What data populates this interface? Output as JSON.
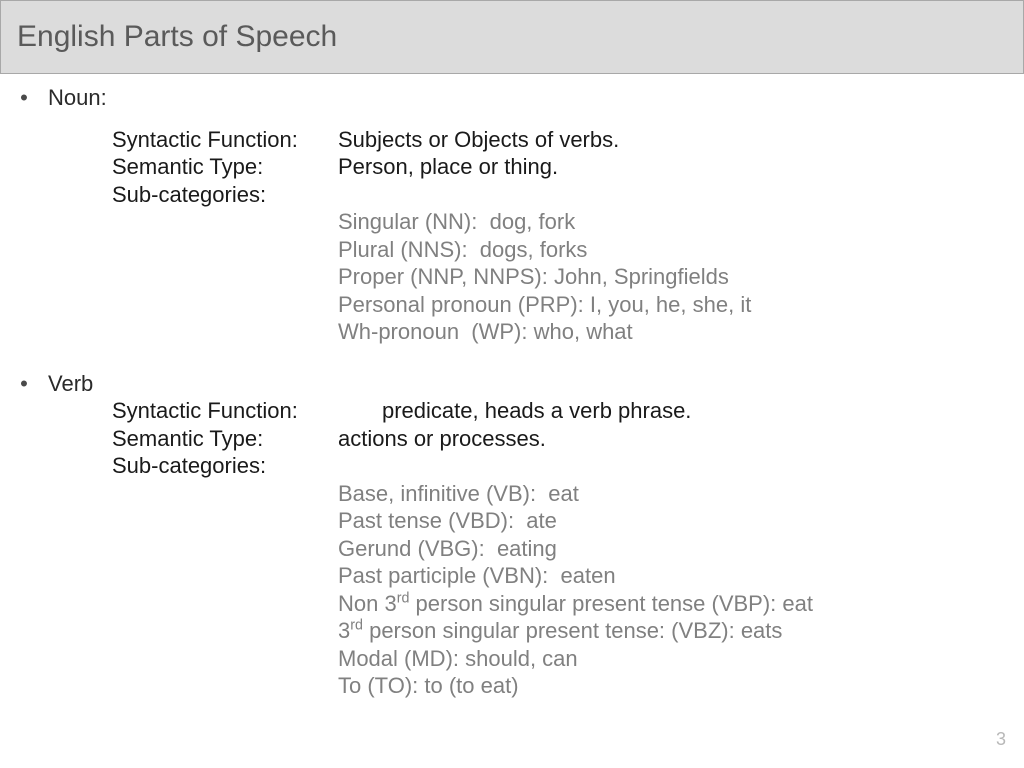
{
  "title": "English Parts of Speech",
  "page_number": "3",
  "colors": {
    "title_bar_bg": "#dcdcdc",
    "title_bar_border": "#a8a8a8",
    "title_text": "#5a5a5a",
    "body_text": "#1a1a1a",
    "subcategory_text": "#808080",
    "page_num": "#b8b8b8",
    "background": "#ffffff"
  },
  "typography": {
    "title_fontsize": 30,
    "body_fontsize": 22,
    "pagenum_fontsize": 18,
    "title_font": "Segoe UI Light",
    "body_font": "Arial"
  },
  "sections": {
    "noun": {
      "label": "Noun:",
      "fields": {
        "syntactic_function": {
          "key": "Syntactic Function:",
          "val": "Subjects or Objects of verbs."
        },
        "semantic_type": {
          "key": "Semantic Type:",
          "val": "Person, place or thing."
        },
        "sub_categories_key": "Sub-categories:"
      },
      "subcategories": [
        "Singular (NN):  dog, fork",
        "Plural (NNS):  dogs, forks",
        "Proper (NNP, NNPS): John, Springfields",
        "Personal pronoun (PRP): I, you, he, she, it",
        "Wh-pronoun  (WP): who, what"
      ]
    },
    "verb": {
      "label": "Verb",
      "fields": {
        "syntactic_function": {
          "key": "Syntactic Function:",
          "val": "predicate, heads a verb phrase."
        },
        "semantic_type": {
          "key": "Semantic Type:",
          "val": "actions or processes."
        },
        "sub_categories_key": "Sub-categories:"
      },
      "subcategory_parts": {
        "l0": "Base, infinitive (VB):  eat",
        "l1": "Past tense (VBD):  ate",
        "l2": "Gerund (VBG):  eating",
        "l3": "Past participle (VBN):  eaten",
        "l4a": "Non 3",
        "l4sup": "rd",
        "l4b": " person singular present tense (VBP): eat",
        "l5a": "3",
        "l5sup": "rd",
        "l5b": " person singular present tense: (VBZ): eats",
        "l6": "Modal (MD): should, can",
        "l7": "To (TO): to (to eat)"
      }
    }
  }
}
